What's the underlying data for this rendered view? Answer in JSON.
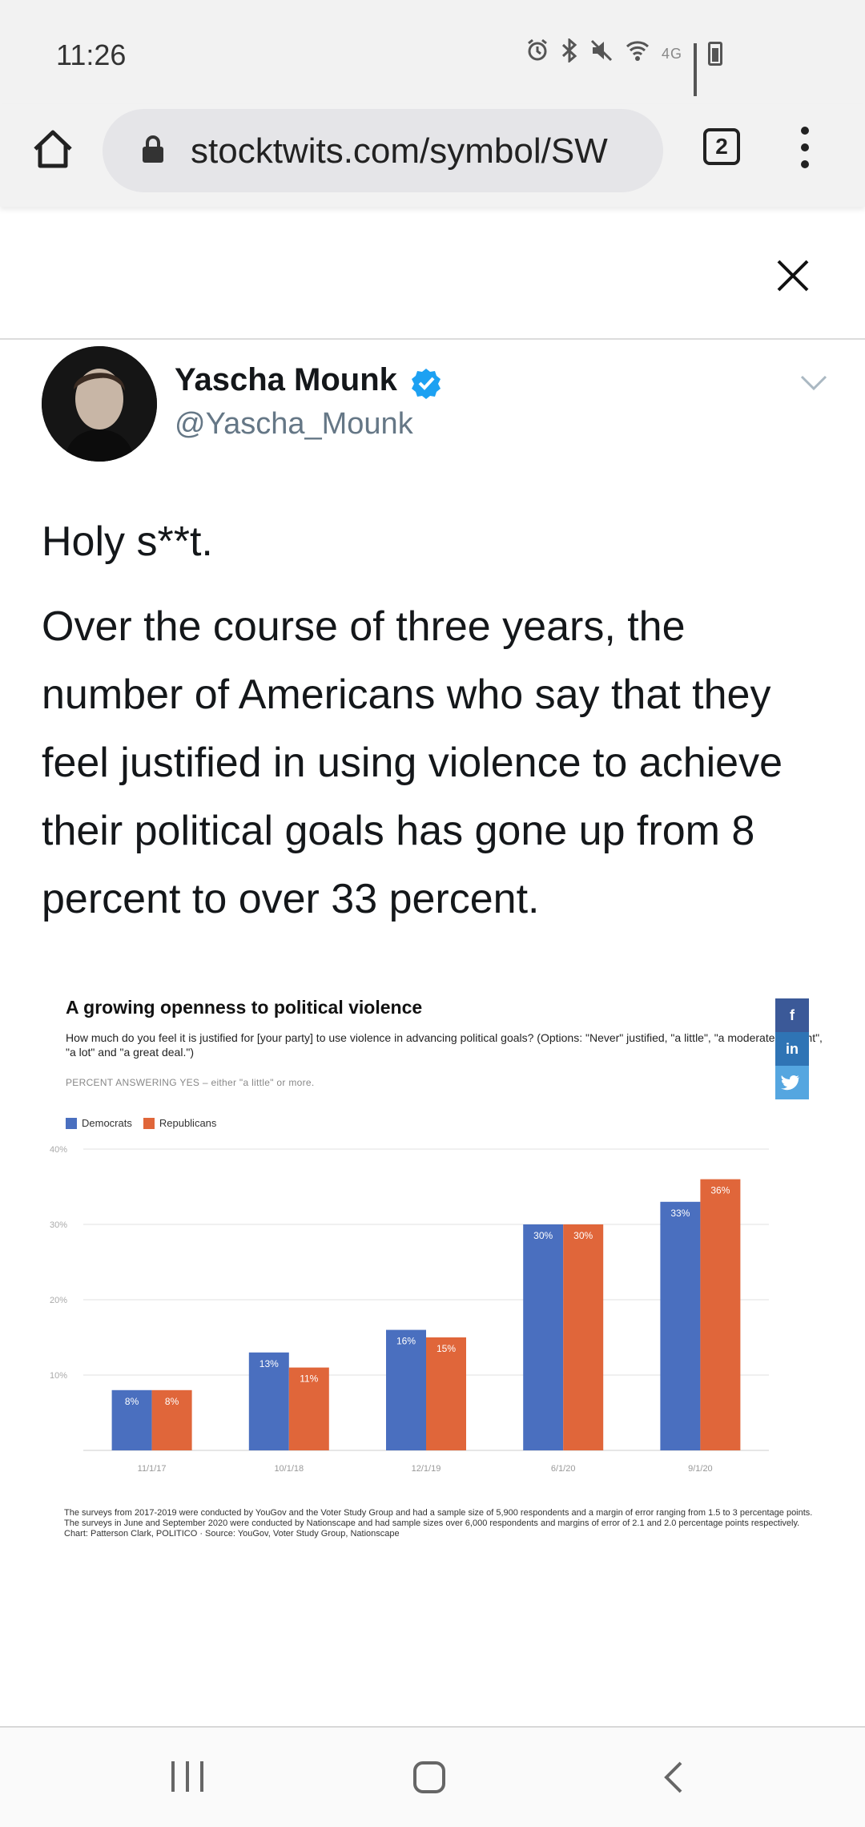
{
  "status_bar": {
    "time": "11:26",
    "network": "4G",
    "icons": [
      "alarm-icon",
      "bluetooth-icon",
      "mute-icon",
      "wifi-icon",
      "signal-icon",
      "battery-icon"
    ]
  },
  "browser": {
    "url": "stocktwits.com/symbol/SW",
    "tab_count": "2",
    "icons": [
      "home-icon",
      "lock-icon",
      "more-icon"
    ]
  },
  "tweet": {
    "author_name": "Yascha Mounk",
    "author_handle": "@Yascha_Mounk",
    "verified": true,
    "text_line1": "Holy s**t.",
    "text_line2": "Over the course of three years, the number of Americans who say that they feel justified in using violence to achieve their political goals has gone up from 8 percent to over 33 percent."
  },
  "figure": {
    "title": "A growing openness to political violence",
    "subtitle": "How much do you feel it is justified for [your party] to use violence in advancing political goals? (Options: \"Never\" justified, \"a little\", \"a moderate amount\", \"a lot\" and \"a great deal.\")",
    "note": "PERCENT ANSWERING YES – either \"a little\" or more.",
    "footnote": "The surveys from 2017-2019 were conducted by YouGov and the Voter Study Group and had a sample size of 5,900 respondents and a margin of error ranging from 1.5 to 3 percentage points. The surveys in June and September 2020 were conducted by Nationscape and had sample sizes over 6,000 respondents and margins of error of 2.1 and 2.0 percentage points respectively.",
    "credit": "Chart: Patterson Clark, POLITICO · Source: YouGov, Voter Study Group, Nationscape",
    "share_buttons": [
      "f",
      "in",
      "t"
    ]
  },
  "chart_data": {
    "type": "bar",
    "title": "A growing openness to political violence",
    "categories": [
      "11/1/17",
      "10/1/18",
      "12/1/19",
      "6/1/20",
      "9/1/20"
    ],
    "series": [
      {
        "name": "Democrats",
        "color": "#4a6fbf",
        "values": [
          8,
          13,
          16,
          30,
          33
        ]
      },
      {
        "name": "Republicans",
        "color": "#e0663a",
        "values": [
          8,
          11,
          15,
          30,
          36
        ]
      }
    ],
    "yticks": [
      "10%",
      "20%",
      "30%",
      "40%"
    ],
    "ylim": [
      0,
      40
    ],
    "grid": true,
    "legend_position": "top-left"
  },
  "colors": {
    "democrats": "#4a6fbf",
    "republicans": "#e0663a",
    "facebook": "#3b5998",
    "linkedin": "#2f74b5",
    "twitter": "#55a6e0",
    "verified": "#1da1f2"
  }
}
